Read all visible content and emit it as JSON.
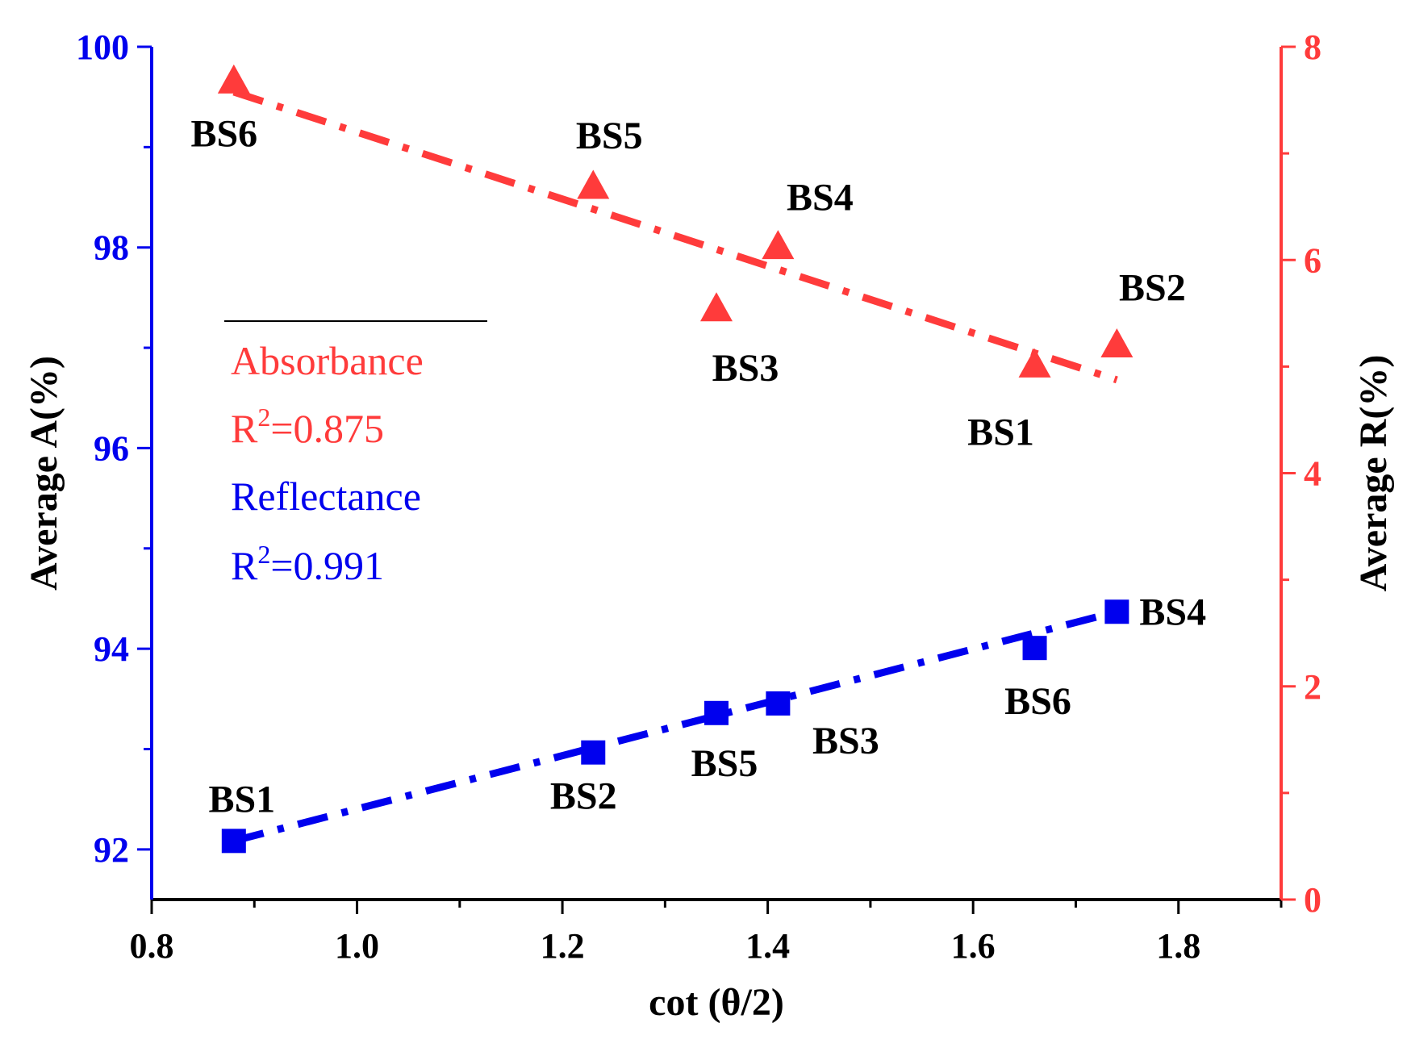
{
  "chart_data": {
    "type": "scatter",
    "xlabel": "cot (θ/2)",
    "ylabel_left": "Average A(%)",
    "ylabel_right": "Average R(%)",
    "xlim": [
      0.8,
      1.9
    ],
    "ylim_left": [
      91.5,
      100
    ],
    "ylim_right": [
      0,
      8
    ],
    "x_ticks": [
      "0.8",
      "1.0",
      "1.2",
      "1.4",
      "1.6",
      "1.8"
    ],
    "y_left_ticks": [
      "92",
      "94",
      "96",
      "98",
      "100"
    ],
    "y_right_ticks": [
      "0",
      "2",
      "4",
      "6",
      "8"
    ],
    "colors": {
      "absorbance": "#ff3b3b",
      "reflectance": "#0000ee",
      "left_axis": "#0000ee",
      "right_axis": "#ff3b3b"
    },
    "series": [
      {
        "name": "Absorbance",
        "axis": "left",
        "marker": "triangle",
        "points": [
          {
            "x": 0.88,
            "y": 99.65,
            "label": "BS6"
          },
          {
            "x": 1.23,
            "y": 98.6,
            "label": "BS5"
          },
          {
            "x": 1.35,
            "y": 97.38,
            "label": "BS3"
          },
          {
            "x": 1.41,
            "y": 98.0,
            "label": "BS4"
          },
          {
            "x": 1.66,
            "y": 96.82,
            "label": "BS1"
          },
          {
            "x": 1.74,
            "y": 97.02,
            "label": "BS2"
          }
        ],
        "fit": {
          "x": [
            0.88,
            1.74
          ],
          "y": [
            99.55,
            96.68
          ]
        }
      },
      {
        "name": "Reflectance",
        "axis": "right",
        "marker": "square",
        "points": [
          {
            "x": 0.88,
            "y": 0.55,
            "label": "BS1"
          },
          {
            "x": 1.23,
            "y": 1.38,
            "label": "BS2"
          },
          {
            "x": 1.35,
            "y": 1.75,
            "label": "BS5"
          },
          {
            "x": 1.41,
            "y": 1.84,
            "label": "BS3"
          },
          {
            "x": 1.66,
            "y": 2.36,
            "label": "BS6"
          },
          {
            "x": 1.74,
            "y": 2.7,
            "label": "BS4"
          }
        ],
        "fit": {
          "x": [
            0.88,
            1.74
          ],
          "y": [
            0.55,
            2.7
          ]
        }
      }
    ],
    "legend": {
      "entries": [
        {
          "text": "Absorbance",
          "color": "#ff3b3b"
        },
        {
          "r2_prefix": "R",
          "r2_sup": "2",
          "r2_value": "=0.875",
          "color": "#ff3b3b"
        },
        {
          "text": "Reflectance",
          "color": "#0000ee"
        },
        {
          "r2_prefix": "R",
          "r2_sup": "2",
          "r2_value": "=0.991",
          "color": "#0000ee"
        }
      ]
    }
  }
}
